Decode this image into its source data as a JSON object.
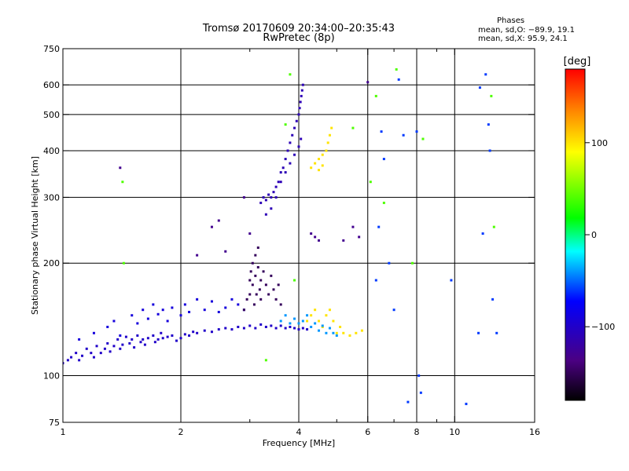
{
  "chart_data": {
    "type": "scatter",
    "title": "Tromsø 20170609 20:34:00–20:35:43",
    "subtitle": "RwPretec (8p)",
    "xlabel": "Frequency [MHz]",
    "ylabel": "Stationary phase Virtual Height [km]",
    "x_scale": "log",
    "y_scale": "log",
    "xlim": [
      1,
      16
    ],
    "ylim": [
      75,
      750
    ],
    "x_ticks": [
      1,
      2,
      4,
      6,
      8,
      10,
      16
    ],
    "x_tick_labels": [
      "1",
      "2",
      "4",
      "6",
      "8",
      "10",
      "16"
    ],
    "x_minor_ticks": [
      3,
      5,
      7,
      9
    ],
    "y_ticks": [
      75,
      100,
      200,
      300,
      400,
      500,
      600,
      750
    ],
    "y_tick_labels": [
      "75",
      "100",
      "200",
      "300",
      "400",
      "500",
      "600",
      "750"
    ],
    "grid": true,
    "grid_x": [
      2,
      4,
      6,
      8,
      10
    ],
    "grid_y": [
      100,
      200,
      300,
      400,
      500,
      600
    ],
    "stats_panel": {
      "heading": "Phases",
      "line_o": "mean, sd,O: −89.9, 19.1",
      "line_x": "mean, sd,X:  95.9, 24.1"
    },
    "colorbar": {
      "unit": "[deg]",
      "min": -180,
      "max": 180,
      "ticks": [
        100,
        0,
        -100
      ],
      "tick_labels": [
        "100",
        "0",
        "−100"
      ]
    },
    "series": [
      {
        "trace": "low E/F-region band, mostly blue",
        "phase": -100,
        "points": [
          [
            1.0,
            108
          ],
          [
            1.03,
            110
          ],
          [
            1.05,
            112
          ],
          [
            1.08,
            115
          ],
          [
            1.1,
            110
          ],
          [
            1.12,
            113
          ],
          [
            1.15,
            118
          ],
          [
            1.18,
            115
          ],
          [
            1.2,
            112
          ],
          [
            1.22,
            120
          ],
          [
            1.25,
            115
          ],
          [
            1.28,
            118
          ],
          [
            1.3,
            122
          ],
          [
            1.32,
            116
          ],
          [
            1.35,
            120
          ],
          [
            1.38,
            125
          ],
          [
            1.4,
            118
          ],
          [
            1.42,
            121
          ],
          [
            1.45,
            127
          ],
          [
            1.48,
            122
          ],
          [
            1.5,
            125
          ],
          [
            1.52,
            119
          ],
          [
            1.55,
            128
          ],
          [
            1.58,
            123
          ],
          [
            1.6,
            125
          ],
          [
            1.62,
            121
          ],
          [
            1.65,
            126
          ],
          [
            1.7,
            128
          ],
          [
            1.72,
            123
          ],
          [
            1.75,
            125
          ],
          [
            1.78,
            130
          ],
          [
            1.8,
            126
          ],
          [
            1.85,
            127
          ],
          [
            1.9,
            128
          ],
          [
            1.95,
            124
          ],
          [
            2.0,
            126
          ],
          [
            2.05,
            129
          ],
          [
            2.1,
            128
          ],
          [
            2.15,
            131
          ],
          [
            2.2,
            130
          ],
          [
            2.3,
            132
          ],
          [
            2.4,
            131
          ],
          [
            2.5,
            133
          ],
          [
            2.6,
            134
          ],
          [
            2.7,
            133
          ],
          [
            2.8,
            135
          ],
          [
            2.9,
            134
          ],
          [
            3.0,
            136
          ],
          [
            3.1,
            134
          ],
          [
            3.2,
            137
          ],
          [
            3.3,
            135
          ],
          [
            3.4,
            136
          ],
          [
            3.5,
            134
          ],
          [
            3.6,
            136
          ],
          [
            3.7,
            134
          ],
          [
            3.8,
            135
          ],
          [
            3.9,
            134
          ],
          [
            4.0,
            133
          ],
          [
            4.1,
            134
          ],
          [
            4.2,
            133
          ]
        ]
      },
      {
        "trace": "scattered low echoes 1-3 MHz",
        "phase": -90,
        "points": [
          [
            1.1,
            125
          ],
          [
            1.2,
            130
          ],
          [
            1.3,
            135
          ],
          [
            1.35,
            140
          ],
          [
            1.4,
            128
          ],
          [
            1.5,
            145
          ],
          [
            1.55,
            138
          ],
          [
            1.6,
            150
          ],
          [
            1.65,
            142
          ],
          [
            1.7,
            155
          ],
          [
            1.75,
            146
          ],
          [
            1.8,
            150
          ],
          [
            1.85,
            140
          ],
          [
            1.9,
            152
          ],
          [
            2.0,
            145
          ],
          [
            2.05,
            155
          ],
          [
            2.1,
            148
          ],
          [
            2.2,
            160
          ],
          [
            2.3,
            150
          ],
          [
            2.4,
            158
          ],
          [
            2.5,
            148
          ],
          [
            2.6,
            152
          ],
          [
            2.7,
            160
          ],
          [
            2.8,
            155
          ],
          [
            2.9,
            150
          ]
        ]
      },
      {
        "trace": "F-region cusp 2.8-3.6 MHz, purple/violet",
        "phase": -150,
        "points": [
          [
            2.9,
            150
          ],
          [
            2.95,
            160
          ],
          [
            3.0,
            165
          ],
          [
            3.0,
            180
          ],
          [
            3.02,
            190
          ],
          [
            3.05,
            200
          ],
          [
            3.05,
            175
          ],
          [
            3.08,
            155
          ],
          [
            3.1,
            210
          ],
          [
            3.1,
            185
          ],
          [
            3.12,
            165
          ],
          [
            3.15,
            195
          ],
          [
            3.15,
            220
          ],
          [
            3.18,
            170
          ],
          [
            3.2,
            180
          ],
          [
            3.2,
            160
          ],
          [
            3.25,
            190
          ],
          [
            3.3,
            175
          ],
          [
            3.35,
            165
          ],
          [
            3.4,
            185
          ],
          [
            3.45,
            170
          ],
          [
            3.5,
            160
          ],
          [
            3.55,
            175
          ],
          [
            3.6,
            155
          ]
        ]
      },
      {
        "trace": "F2 trace 3.2-4.2 MHz, blue",
        "phase": -110,
        "points": [
          [
            3.2,
            290
          ],
          [
            3.25,
            300
          ],
          [
            3.3,
            295
          ],
          [
            3.35,
            305
          ],
          [
            3.4,
            300
          ],
          [
            3.45,
            310
          ],
          [
            3.5,
            320
          ],
          [
            3.55,
            330
          ],
          [
            3.6,
            350
          ],
          [
            3.65,
            360
          ],
          [
            3.7,
            380
          ],
          [
            3.75,
            400
          ],
          [
            3.8,
            420
          ],
          [
            3.85,
            440
          ],
          [
            3.9,
            460
          ],
          [
            3.95,
            480
          ],
          [
            4.0,
            500
          ],
          [
            4.02,
            520
          ],
          [
            4.04,
            540
          ],
          [
            4.06,
            560
          ],
          [
            4.08,
            580
          ],
          [
            4.1,
            600
          ],
          [
            3.7,
            350
          ],
          [
            3.8,
            370
          ],
          [
            3.9,
            390
          ],
          [
            4.0,
            410
          ],
          [
            4.05,
            430
          ],
          [
            3.6,
            330
          ],
          [
            3.5,
            300
          ],
          [
            3.4,
            280
          ],
          [
            3.3,
            270
          ]
        ]
      },
      {
        "trace": "X-mode echoes 4-5.8 MHz, yellow/orange",
        "phase": 100,
        "points": [
          [
            4.3,
            360
          ],
          [
            4.4,
            370
          ],
          [
            4.5,
            380
          ],
          [
            4.6,
            390
          ],
          [
            4.7,
            400
          ],
          [
            4.75,
            420
          ],
          [
            4.8,
            440
          ],
          [
            4.85,
            460
          ],
          [
            4.5,
            355
          ],
          [
            4.6,
            365
          ],
          [
            4.2,
            140
          ],
          [
            4.3,
            145
          ],
          [
            4.4,
            150
          ],
          [
            4.5,
            140
          ],
          [
            4.6,
            135
          ],
          [
            4.7,
            145
          ],
          [
            4.8,
            150
          ],
          [
            4.9,
            140
          ],
          [
            5.0,
            130
          ],
          [
            5.1,
            135
          ],
          [
            5.2,
            130
          ],
          [
            5.4,
            128
          ],
          [
            5.6,
            130
          ],
          [
            5.8,
            132
          ]
        ]
      },
      {
        "trace": "cyan echoes 3.5-5 MHz",
        "phase": -40,
        "points": [
          [
            3.6,
            140
          ],
          [
            3.7,
            145
          ],
          [
            3.8,
            138
          ],
          [
            3.9,
            142
          ],
          [
            4.0,
            138
          ],
          [
            4.1,
            140
          ],
          [
            4.2,
            145
          ],
          [
            4.3,
            135
          ],
          [
            4.4,
            138
          ],
          [
            4.5,
            132
          ],
          [
            4.6,
            136
          ],
          [
            4.7,
            130
          ],
          [
            4.8,
            134
          ],
          [
            4.9,
            130
          ],
          [
            5.0,
            128
          ]
        ]
      },
      {
        "trace": "isolated echoes above 6 MHz",
        "phase": -60,
        "points": [
          [
            6.3,
            180
          ],
          [
            6.4,
            250
          ],
          [
            6.5,
            450
          ],
          [
            6.6,
            380
          ],
          [
            6.8,
            200
          ],
          [
            7.0,
            150
          ],
          [
            7.2,
            620
          ],
          [
            7.4,
            440
          ],
          [
            7.6,
            85
          ],
          [
            8.0,
            450
          ],
          [
            8.1,
            100
          ],
          [
            8.2,
            90
          ],
          [
            9.8,
            180
          ],
          [
            10.7,
            84
          ],
          [
            11.6,
            590
          ],
          [
            11.8,
            240
          ],
          [
            12.0,
            640
          ],
          [
            12.2,
            470
          ],
          [
            12.3,
            400
          ],
          [
            12.5,
            160
          ],
          [
            12.8,
            130
          ],
          [
            11.5,
            130
          ]
        ]
      },
      {
        "trace": "sparse mid-band echoes",
        "phase": -130,
        "points": [
          [
            1.4,
            360
          ],
          [
            2.4,
            250
          ],
          [
            2.5,
            260
          ],
          [
            2.9,
            300
          ],
          [
            3.0,
            240
          ],
          [
            4.3,
            240
          ],
          [
            4.4,
            235
          ],
          [
            4.5,
            230
          ],
          [
            5.2,
            230
          ],
          [
            5.5,
            250
          ],
          [
            5.7,
            235
          ],
          [
            6.0,
            610
          ],
          [
            2.2,
            210
          ],
          [
            2.6,
            215
          ]
        ]
      },
      {
        "trace": "warm outliers",
        "phase": 40,
        "points": [
          [
            1.42,
            330
          ],
          [
            1.43,
            200
          ],
          [
            3.8,
            640
          ],
          [
            3.9,
            180
          ],
          [
            3.7,
            470
          ],
          [
            6.1,
            330
          ],
          [
            6.3,
            560
          ],
          [
            6.6,
            290
          ],
          [
            7.1,
            660
          ],
          [
            7.8,
            200
          ],
          [
            8.3,
            430
          ],
          [
            12.4,
            560
          ],
          [
            12.6,
            250
          ],
          [
            5.5,
            460
          ],
          [
            3.3,
            110
          ]
        ]
      }
    ]
  }
}
